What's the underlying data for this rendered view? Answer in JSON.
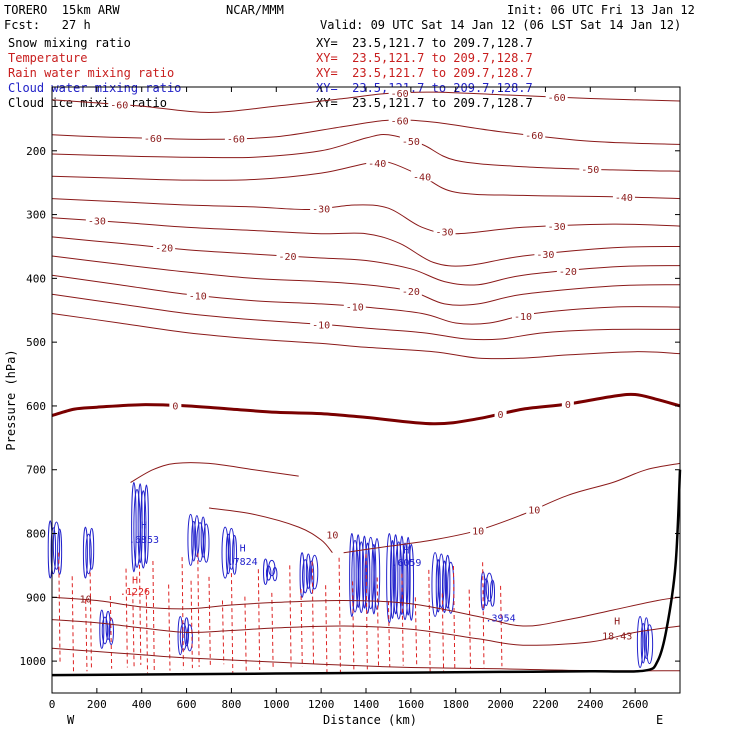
{
  "header": {
    "model": "TORERO  15km ARW",
    "org": "NCAR/MMM",
    "init": "Init: 06 UTC Fri 13 Jan 12",
    "fcst": "Fcst:   27 h",
    "valid": "Valid: 09 UTC Sat 14 Jan 12 (06 LST Sat 14 Jan 12)"
  },
  "legend": [
    {
      "label": "Snow mixing ratio",
      "color": "#000000",
      "xy": "XY=  23.5,121.7 to 209.7,128.7"
    },
    {
      "label": "Temperature",
      "color": "#c81e1e",
      "xy": "XY=  23.5,121.7 to 209.7,128.7"
    },
    {
      "label": "Rain water mixing ratio",
      "color": "#c81e1e",
      "xy": "XY=  23.5,121.7 to 209.7,128.7"
    },
    {
      "label": "Cloud water mixing ratio",
      "color": "#2323c8",
      "xy": "XY=  23.5,121.7 to 209.7,128.7"
    },
    {
      "label": "Cloud ice mixing ratio",
      "color": "#000000",
      "xy": "XY=  23.5,121.7 to 209.7,128.7"
    }
  ],
  "chart_data": {
    "type": "contour-cross-section",
    "xlabel": "Distance (km)",
    "ylabel": "Pressure (hPa)",
    "xlim": [
      0,
      2800
    ],
    "ylim": [
      1050,
      100
    ],
    "x_ticks": [
      0,
      200,
      400,
      600,
      800,
      1000,
      1200,
      1400,
      1600,
      1800,
      2000,
      2200,
      2400,
      2600
    ],
    "y_ticks": [
      200,
      300,
      400,
      500,
      600,
      700,
      800,
      900,
      1000
    ],
    "x_end_labels": {
      "west": "W",
      "east": "E"
    },
    "colors": {
      "temperature": "#8b1a1a",
      "freezing": "#7a0000",
      "rain": "#dd2222",
      "cloud_water": "#2222cc",
      "terrain": "#000000"
    },
    "temperature_isotherms": [
      {
        "label": "-60",
        "points": [
          [
            0,
            120
          ],
          [
            200,
            125
          ],
          [
            400,
            130
          ],
          [
            700,
            140
          ],
          [
            1000,
            130
          ],
          [
            1300,
            118
          ],
          [
            1500,
            110
          ],
          [
            1700,
            108
          ],
          [
            2000,
            112
          ],
          [
            2400,
            118
          ],
          [
            2800,
            122
          ]
        ]
      },
      {
        "label": "-60",
        "points": [
          [
            0,
            175
          ],
          [
            200,
            178
          ],
          [
            400,
            180
          ],
          [
            700,
            182
          ],
          [
            1000,
            178
          ],
          [
            1300,
            162
          ],
          [
            1500,
            152
          ],
          [
            1700,
            155
          ],
          [
            2000,
            170
          ],
          [
            2400,
            185
          ],
          [
            2800,
            190
          ]
        ]
      },
      {
        "label": "-50",
        "points": [
          [
            0,
            205
          ],
          [
            300,
            208
          ],
          [
            600,
            210
          ],
          [
            900,
            210
          ],
          [
            1200,
            200
          ],
          [
            1400,
            180
          ],
          [
            1500,
            175
          ],
          [
            1650,
            190
          ],
          [
            1800,
            215
          ],
          [
            2100,
            225
          ],
          [
            2500,
            230
          ],
          [
            2800,
            232
          ]
        ]
      },
      {
        "label": "-40",
        "points": [
          [
            0,
            240
          ],
          [
            300,
            243
          ],
          [
            600,
            246
          ],
          [
            900,
            245
          ],
          [
            1200,
            235
          ],
          [
            1400,
            220
          ],
          [
            1500,
            218
          ],
          [
            1650,
            240
          ],
          [
            1800,
            265
          ],
          [
            2100,
            270
          ],
          [
            2500,
            272
          ],
          [
            2800,
            275
          ]
        ]
      },
      {
        "label": "-30",
        "points": [
          [
            0,
            275
          ],
          [
            300,
            280
          ],
          [
            600,
            285
          ],
          [
            900,
            288
          ],
          [
            1150,
            292
          ],
          [
            1350,
            285
          ],
          [
            1500,
            290
          ],
          [
            1650,
            320
          ],
          [
            1800,
            330
          ],
          [
            2100,
            320
          ],
          [
            2500,
            315
          ],
          [
            2800,
            318
          ]
        ]
      },
      {
        "label": "-30",
        "points": [
          [
            0,
            305
          ],
          [
            300,
            312
          ],
          [
            600,
            320
          ],
          [
            900,
            325
          ],
          [
            1200,
            330
          ],
          [
            1400,
            330
          ],
          [
            1550,
            345
          ],
          [
            1700,
            375
          ],
          [
            1850,
            380
          ],
          [
            2100,
            365
          ],
          [
            2500,
            352
          ],
          [
            2800,
            350
          ]
        ]
      },
      {
        "label": "-20",
        "points": [
          [
            0,
            335
          ],
          [
            300,
            345
          ],
          [
            600,
            355
          ],
          [
            900,
            362
          ],
          [
            1200,
            368
          ],
          [
            1400,
            372
          ],
          [
            1600,
            385
          ],
          [
            1750,
            405
          ],
          [
            1900,
            410
          ],
          [
            2100,
            395
          ],
          [
            2500,
            382
          ],
          [
            2800,
            380
          ]
        ]
      },
      {
        "label": "-20",
        "points": [
          [
            0,
            365
          ],
          [
            300,
            378
          ],
          [
            600,
            390
          ],
          [
            900,
            400
          ],
          [
            1200,
            405
          ],
          [
            1400,
            410
          ],
          [
            1600,
            420
          ],
          [
            1750,
            440
          ],
          [
            1900,
            440
          ],
          [
            2100,
            425
          ],
          [
            2500,
            412
          ],
          [
            2800,
            410
          ]
        ]
      },
      {
        "label": "-10",
        "points": [
          [
            0,
            395
          ],
          [
            300,
            410
          ],
          [
            600,
            425
          ],
          [
            900,
            435
          ],
          [
            1200,
            440
          ],
          [
            1400,
            445
          ],
          [
            1650,
            455
          ],
          [
            1800,
            470
          ],
          [
            1950,
            470
          ],
          [
            2150,
            455
          ],
          [
            2500,
            445
          ],
          [
            2800,
            445
          ]
        ]
      },
      {
        "label": "-10",
        "points": [
          [
            0,
            425
          ],
          [
            300,
            440
          ],
          [
            600,
            455
          ],
          [
            900,
            465
          ],
          [
            1200,
            472
          ],
          [
            1400,
            478
          ],
          [
            1650,
            485
          ],
          [
            1850,
            495
          ],
          [
            2000,
            495
          ],
          [
            2200,
            485
          ],
          [
            2500,
            480
          ],
          [
            2800,
            480
          ]
        ]
      },
      {
        "label": "-10",
        "points": [
          [
            0,
            455
          ],
          [
            300,
            470
          ],
          [
            600,
            485
          ],
          [
            900,
            495
          ],
          [
            1200,
            502
          ],
          [
            1400,
            508
          ],
          [
            1700,
            515
          ],
          [
            1900,
            525
          ],
          [
            2100,
            525
          ],
          [
            2300,
            520
          ],
          [
            2600,
            515
          ],
          [
            2800,
            518
          ]
        ]
      }
    ],
    "freezing_level": {
      "label": "0",
      "points": [
        [
          0,
          615
        ],
        [
          100,
          605
        ],
        [
          200,
          602
        ],
        [
          400,
          598
        ],
        [
          600,
          600
        ],
        [
          800,
          605
        ],
        [
          1000,
          610
        ],
        [
          1200,
          612
        ],
        [
          1400,
          618
        ],
        [
          1700,
          628
        ],
        [
          1900,
          620
        ],
        [
          2100,
          605
        ],
        [
          2300,
          597
        ],
        [
          2500,
          585
        ],
        [
          2600,
          582
        ],
        [
          2700,
          590
        ],
        [
          2800,
          600
        ]
      ]
    },
    "warm_isotherm": {
      "label": "10",
      "points": [
        [
          1300,
          830
        ],
        [
          1500,
          820
        ],
        [
          1700,
          810
        ],
        [
          1900,
          795
        ],
        [
          2100,
          770
        ],
        [
          2300,
          740
        ],
        [
          2500,
          720
        ],
        [
          2650,
          700
        ],
        [
          2800,
          690
        ]
      ]
    },
    "markers": [
      {
        "label": "H",
        "x": 410,
        "p": 792,
        "color": "#2222cc"
      },
      {
        "label": ".6853",
        "x": 410,
        "p": 815,
        "color": "#2222cc"
      },
      {
        "label": "H",
        "x": 850,
        "p": 828,
        "color": "#2222cc"
      },
      {
        "label": ".7824",
        "x": 850,
        "p": 849,
        "color": "#2222cc"
      },
      {
        "label": "H",
        "x": 1580,
        "p": 831,
        "color": "#2222cc"
      },
      {
        "label": ".6059",
        "x": 1580,
        "p": 851,
        "color": "#2222cc"
      },
      {
        "label": "H",
        "x": 2520,
        "p": 943,
        "color": "#8b1a1a"
      },
      {
        "label": "18.43",
        "x": 2520,
        "p": 966,
        "color": "#8b1a1a"
      },
      {
        "label": ".3954",
        "x": 2000,
        "p": 938,
        "color": "#2222cc"
      },
      {
        "label": "H",
        "x": 370,
        "p": 878,
        "color": "#dd2222"
      },
      {
        "label": ".1226",
        "x": 370,
        "p": 896,
        "color": "#dd2222"
      }
    ]
  }
}
